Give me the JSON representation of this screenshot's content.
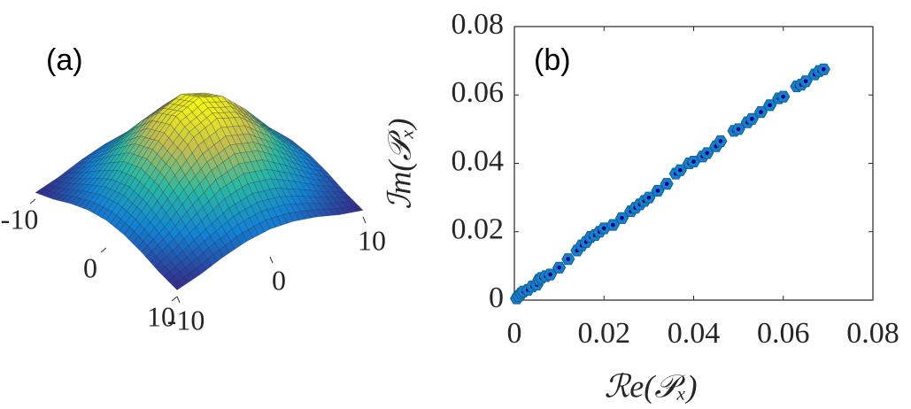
{
  "chart_data": [
    {
      "type": "surface",
      "label": "(a)",
      "x": [
        -10,
        -7.5,
        -5,
        -2.5,
        0,
        2.5,
        5,
        7.5,
        10
      ],
      "y": [
        -10,
        -7.5,
        -5,
        -2.5,
        0,
        2.5,
        5,
        7.5,
        10
      ],
      "z": [
        [
          0.06,
          0.11,
          0.18,
          0.23,
          0.25,
          0.23,
          0.18,
          0.11,
          0.06
        ],
        [
          0.11,
          0.21,
          0.32,
          0.42,
          0.46,
          0.42,
          0.32,
          0.21,
          0.11
        ],
        [
          0.18,
          0.32,
          0.5,
          0.65,
          0.71,
          0.65,
          0.5,
          0.32,
          0.18
        ],
        [
          0.23,
          0.42,
          0.65,
          0.84,
          0.92,
          0.84,
          0.65,
          0.42,
          0.23
        ],
        [
          0.25,
          0.46,
          0.71,
          0.92,
          1.0,
          0.92,
          0.71,
          0.46,
          0.25
        ],
        [
          0.23,
          0.42,
          0.65,
          0.84,
          0.92,
          0.84,
          0.65,
          0.42,
          0.23
        ],
        [
          0.18,
          0.32,
          0.5,
          0.65,
          0.71,
          0.65,
          0.5,
          0.32,
          0.18
        ],
        [
          0.11,
          0.21,
          0.32,
          0.42,
          0.46,
          0.42,
          0.32,
          0.21,
          0.11
        ],
        [
          0.06,
          0.11,
          0.18,
          0.23,
          0.25,
          0.23,
          0.18,
          0.11,
          0.06
        ]
      ],
      "colormap": [
        "#352a87",
        "#1283d4",
        "#2ab9a0",
        "#c2bc50",
        "#f9fb0e"
      ],
      "xticks": [
        -10,
        0,
        10
      ],
      "yticks": [
        -10,
        0,
        10
      ]
    },
    {
      "type": "scatter",
      "label": "(b)",
      "xlabel": "ℛe(𝒫ₓ)",
      "ylabel": "ℐm(𝒫ₓ)",
      "x": [
        0.0005,
        0.001,
        0.0015,
        0.002,
        0.003,
        0.004,
        0.005,
        0.0055,
        0.006,
        0.007,
        0.008,
        0.01,
        0.012,
        0.014,
        0.015,
        0.016,
        0.017,
        0.018,
        0.019,
        0.02,
        0.022,
        0.024,
        0.026,
        0.027,
        0.028,
        0.029,
        0.03,
        0.032,
        0.034,
        0.036,
        0.037,
        0.039,
        0.04,
        0.042,
        0.043,
        0.045,
        0.046,
        0.049,
        0.05,
        0.052,
        0.053,
        0.055,
        0.057,
        0.059,
        0.06,
        0.063,
        0.064,
        0.065,
        0.067,
        0.068,
        0.069
      ],
      "values": [
        0.0005,
        0.0012,
        0.002,
        0.0025,
        0.003,
        0.004,
        0.0045,
        0.006,
        0.0065,
        0.007,
        0.0075,
        0.0095,
        0.012,
        0.0145,
        0.016,
        0.017,
        0.0185,
        0.019,
        0.02,
        0.021,
        0.022,
        0.024,
        0.026,
        0.027,
        0.028,
        0.029,
        0.03,
        0.032,
        0.034,
        0.037,
        0.038,
        0.04,
        0.0405,
        0.042,
        0.043,
        0.045,
        0.0465,
        0.0495,
        0.05,
        0.052,
        0.053,
        0.055,
        0.057,
        0.059,
        0.0595,
        0.0625,
        0.063,
        0.064,
        0.066,
        0.067,
        0.0675
      ],
      "color": "#1a7fc8",
      "center_color": "#00008b",
      "xlim": [
        0,
        0.08
      ],
      "ylim": [
        0,
        0.08
      ],
      "xticks": [
        0,
        0.02,
        0.04,
        0.06,
        0.08
      ],
      "yticks": [
        0,
        0.02,
        0.04,
        0.06,
        0.08
      ]
    }
  ]
}
